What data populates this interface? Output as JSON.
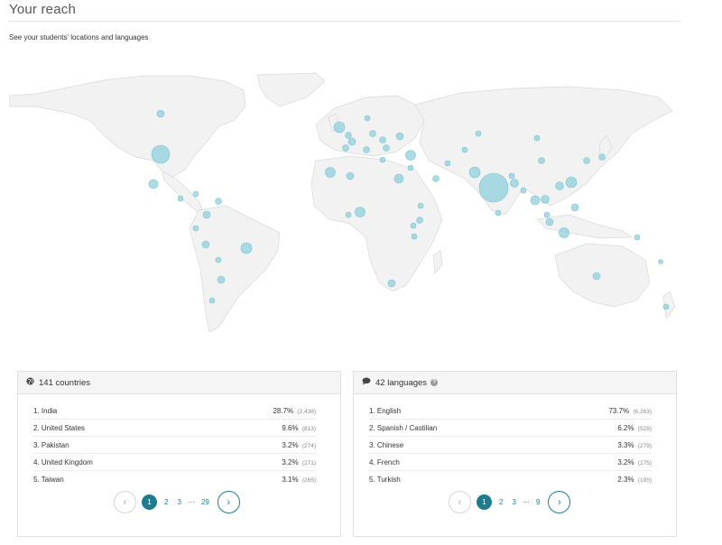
{
  "header": {
    "title": "Your reach",
    "subtitle": "See your students' locations and languages"
  },
  "map": {
    "land_color": "#f2f2f2",
    "border_color": "#d9d9d9",
    "bubble_color": "#8fd0dc"
  },
  "countries": {
    "heading": "141 countries",
    "icon": "globe-icon",
    "rows": [
      {
        "label": "1. India",
        "pct": "28.7%",
        "count": "(2,438)"
      },
      {
        "label": "2. United States",
        "pct": "9.6%",
        "count": "(813)"
      },
      {
        "label": "3. Pakistan",
        "pct": "3.2%",
        "count": "(274)"
      },
      {
        "label": "4. United Kingdom",
        "pct": "3.2%",
        "count": "(271)"
      },
      {
        "label": "5. Taiwan",
        "pct": "3.1%",
        "count": "(265)"
      }
    ],
    "pager": {
      "prev": "‹",
      "pages": [
        "1",
        "2",
        "3"
      ],
      "ellipsis": "···",
      "last": "29",
      "next": "›"
    }
  },
  "languages": {
    "heading": "42 languages",
    "icon": "chat-bubble-icon",
    "help_icon": "?",
    "rows": [
      {
        "label": "1. English",
        "pct": "73.7%",
        "count": "(6,263)"
      },
      {
        "label": "2. Spanish / Castilian",
        "pct": "6.2%",
        "count": "(529)"
      },
      {
        "label": "3. Chinese",
        "pct": "3.3%",
        "count": "(279)"
      },
      {
        "label": "4. French",
        "pct": "3.2%",
        "count": "(275)"
      },
      {
        "label": "5. Turkish",
        "pct": "2.3%",
        "count": "(195)"
      }
    ],
    "pager": {
      "prev": "‹",
      "pages": [
        "1",
        "2",
        "3"
      ],
      "ellipsis": "···",
      "last": "9",
      "next": "›"
    }
  }
}
